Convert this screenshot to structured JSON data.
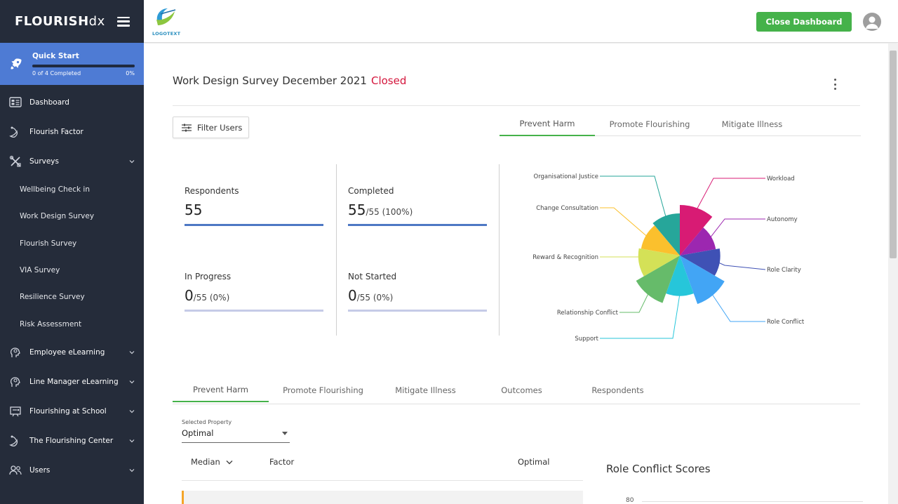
{
  "brand": {
    "name_bold": "FLOURISH",
    "name_light": "dx"
  },
  "logo": {
    "text": "LOGOTEXT"
  },
  "header": {
    "close_button": "Close Dashboard"
  },
  "quick_start": {
    "title": "Quick Start",
    "progress_text": "0 of 4 Completed",
    "percent_text": "0%",
    "progress": 0
  },
  "sidebar": {
    "items": [
      {
        "label": "Dashboard",
        "icon": "dashboard-icon"
      },
      {
        "label": "Flourish Factor",
        "icon": "leaf-icon"
      },
      {
        "label": "Surveys",
        "icon": "tools-icon",
        "expanded": true
      }
    ],
    "survey_subitems": [
      "Wellbeing Check in",
      "Work Design Survey",
      "Flourish Survey",
      "VIA Survey",
      "Resilience Survey",
      "Risk Assessment"
    ],
    "more_items": [
      {
        "label": "Employee eLearning",
        "icon": "head-icon"
      },
      {
        "label": "Line Manager eLearning",
        "icon": "head-icon"
      },
      {
        "label": "Flourishing at School",
        "icon": "school-icon"
      },
      {
        "label": "The Flourishing Center",
        "icon": "leaf-icon"
      },
      {
        "label": "Users",
        "icon": "users-icon"
      }
    ]
  },
  "survey": {
    "title": "Work Design Survey December 2021",
    "status": "Closed",
    "status_color": "#d4163c"
  },
  "filter_button": "Filter Users",
  "top_tabs": [
    "Prevent Harm",
    "Promote Flourishing",
    "Mitigate Illness"
  ],
  "stats": {
    "respondents": {
      "label": "Respondents",
      "value": "55"
    },
    "completed": {
      "label": "Completed",
      "value": "55",
      "sub": "/55 (100%)"
    },
    "in_progress": {
      "label": "In Progress",
      "value": "0",
      "sub": "/55 (0%)"
    },
    "not_started": {
      "label": "Not Started",
      "value": "0",
      "sub": "/55 (0%)"
    }
  },
  "chart_data": {
    "type": "polar-area",
    "segments": [
      {
        "name": "Workload",
        "color": "#d81b74",
        "value": 0.9
      },
      {
        "name": "Autonomy",
        "color": "#9c27b0",
        "value": 0.65
      },
      {
        "name": "Role Clarity",
        "color": "#3f51b5",
        "value": 0.72
      },
      {
        "name": "Role Conflict",
        "color": "#42a5f5",
        "value": 0.92
      },
      {
        "name": "Support",
        "color": "#26c6da",
        "value": 0.72
      },
      {
        "name": "Relationship Conflict",
        "color": "#66bb6a",
        "value": 0.9
      },
      {
        "name": "Reward & Recognition",
        "color": "#d4e157",
        "value": 0.74
      },
      {
        "name": "Change Consultation",
        "color": "#fbc02d",
        "value": 0.7
      },
      {
        "name": "Organisational Justice",
        "color": "#26a69a",
        "value": 0.75
      }
    ]
  },
  "lower_tabs": [
    "Prevent Harm",
    "Promote Flourishing",
    "Mitigate Illness",
    "Outcomes",
    "Respondents"
  ],
  "selected_property": {
    "label": "Selected Property",
    "value": "Optimal"
  },
  "table": {
    "headers": {
      "median": "Median",
      "factor": "Factor",
      "optimal": "Optimal"
    }
  },
  "role_conflict": {
    "title": "Role Conflict Scores",
    "axis_top": "80"
  }
}
